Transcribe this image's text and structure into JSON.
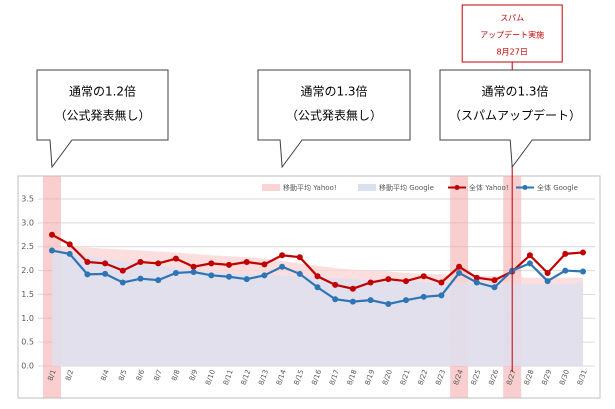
{
  "chart_data": {
    "type": "line",
    "annotation": {
      "lines": [
        "スパム",
        "アップデート実施",
        "8月27日"
      ],
      "category_index": 26
    },
    "callouts": [
      {
        "lines": [
          "通常の1.2倍",
          "（公式発表無し）"
        ],
        "category_index": 0
      },
      {
        "lines": [
          "通常の1.3倍",
          "（公式発表無し）"
        ],
        "category_index": 13
      },
      {
        "lines": [
          "通常の1.3倍",
          "（スパムアップデート）"
        ],
        "category_index": 26
      }
    ],
    "highlights": [
      0,
      23,
      26
    ],
    "categories": [
      "8/1",
      "8/2",
      null,
      "8/4",
      "8/5",
      "8/6",
      "8/7",
      "8/8",
      "8/9",
      "8/10",
      "8/11",
      "8/12",
      "8/13",
      "8/14",
      "8/15",
      "8/16",
      "8/17",
      "8/18",
      "8/19",
      "8/20",
      "8/21",
      "8/22",
      "8/23",
      "8/24",
      "8/25",
      "8/26",
      "8/27",
      "8/28",
      "8/29",
      "8/30",
      "8/31"
    ],
    "series": [
      {
        "name": "移動平均 Yahoo!",
        "kind": "area",
        "color": "#fbd3d3",
        "values": [
          2.5,
          2.5,
          2.48,
          2.46,
          2.44,
          2.42,
          2.4,
          2.38,
          2.35,
          2.32,
          2.3,
          2.28,
          2.25,
          2.2,
          2.15,
          2.1,
          2.05,
          2.02,
          2.0,
          1.98,
          1.95,
          1.93,
          1.92,
          1.92,
          1.9,
          1.88,
          1.87,
          1.85,
          1.85,
          1.85,
          1.85
        ]
      },
      {
        "name": "移動平均 Google",
        "kind": "area",
        "color": "#dbe0f1",
        "values": [
          2.4,
          2.35,
          2.3,
          2.25,
          2.2,
          2.15,
          2.1,
          2.05,
          2.0,
          1.98,
          1.95,
          1.93,
          1.92,
          1.9,
          1.88,
          1.86,
          1.84,
          1.82,
          1.8,
          1.78,
          1.77,
          1.76,
          1.75,
          1.75,
          1.74,
          1.73,
          1.73,
          1.72,
          1.72,
          1.72,
          1.75
        ]
      },
      {
        "name": "全体 Yahoo!",
        "kind": "line",
        "color": "#c00000",
        "values": [
          2.75,
          2.55,
          2.18,
          2.15,
          2.0,
          2.18,
          2.15,
          2.25,
          2.08,
          2.15,
          2.12,
          2.18,
          2.13,
          2.32,
          2.28,
          1.88,
          1.7,
          1.62,
          1.75,
          1.82,
          1.78,
          1.88,
          1.75,
          2.08,
          1.85,
          1.8,
          1.98,
          2.32,
          1.95,
          2.35,
          2.38
        ]
      },
      {
        "name": "全体 Google",
        "kind": "line",
        "color": "#2e75b6",
        "values": [
          2.42,
          2.35,
          1.92,
          1.93,
          1.75,
          1.83,
          1.8,
          1.95,
          1.97,
          1.9,
          1.87,
          1.82,
          1.9,
          2.08,
          1.93,
          1.65,
          1.4,
          1.35,
          1.38,
          1.3,
          1.38,
          1.45,
          1.48,
          1.95,
          1.75,
          1.65,
          2.0,
          2.15,
          1.78,
          2.0,
          1.98
        ]
      }
    ],
    "ylim": [
      0,
      3.5
    ],
    "yticks": [
      {
        "value": 0,
        "label": "0.0"
      },
      {
        "value": 0.5,
        "label": "0.5"
      },
      {
        "value": 1,
        "label": "1.0"
      },
      {
        "value": 1.5,
        "label": "1.5"
      },
      {
        "value": 2,
        "label": "2.0"
      },
      {
        "value": 2.5,
        "label": "2.5"
      },
      {
        "value": 3,
        "label": "3.0"
      },
      {
        "value": 3.5,
        "label": "3.5"
      }
    ],
    "grid": true
  }
}
